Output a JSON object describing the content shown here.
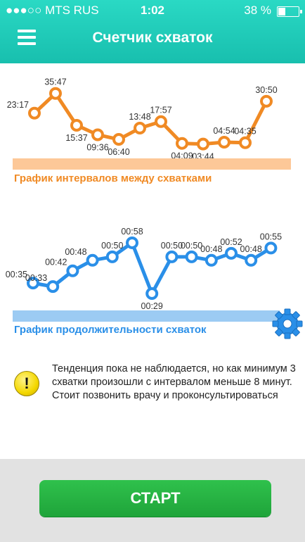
{
  "status_bar": {
    "carrier": "●●●○○ MTS RUS",
    "time": "1:02",
    "battery": "38 %"
  },
  "header": {
    "title": "Счетчик схваток",
    "menu_icon": "menu-icon"
  },
  "interval_chart": {
    "caption": "График интервалов между схватками",
    "color": "#f08a24",
    "band_color": "#fdc898"
  },
  "duration_chart": {
    "caption": "График продолжительности схваток",
    "color": "#2a8fe8",
    "band_color": "#9ccbf3"
  },
  "chart_data": [
    {
      "type": "line",
      "name": "intervals",
      "labels": [
        "23:17",
        "35:47",
        "15:37",
        "09:36",
        "06:40",
        "13:48",
        "17:57",
        "04:09",
        "03:44",
        "04:54",
        "04:35",
        "30:50"
      ],
      "values_seconds": [
        1397,
        2147,
        937,
        576,
        400,
        828,
        1077,
        249,
        224,
        294,
        275,
        1850
      ],
      "ylim": [
        0,
        2300
      ]
    },
    {
      "type": "line",
      "name": "durations",
      "labels": [
        "00:35",
        "00:33",
        "00:42",
        "00:48",
        "00:50",
        "00:58",
        "00:29",
        "00:50",
        "00:50",
        "00:48",
        "00:52",
        "00:48",
        "00:55"
      ],
      "values_seconds": [
        35,
        33,
        42,
        48,
        50,
        58,
        29,
        50,
        50,
        48,
        52,
        48,
        55
      ],
      "ylim": [
        25,
        62
      ]
    }
  ],
  "notice": {
    "icon": "warning-icon",
    "icon_glyph": "!",
    "text": "Тенденция пока не наблюдается, но как минимум 3 схватки произошли с интервалом меньше 8 минут. Стоит позвонить врачу и проконсультироваться"
  },
  "settings_icon": "gear-icon",
  "start_button": {
    "label": "СТАРТ",
    "color": "#22b042"
  }
}
